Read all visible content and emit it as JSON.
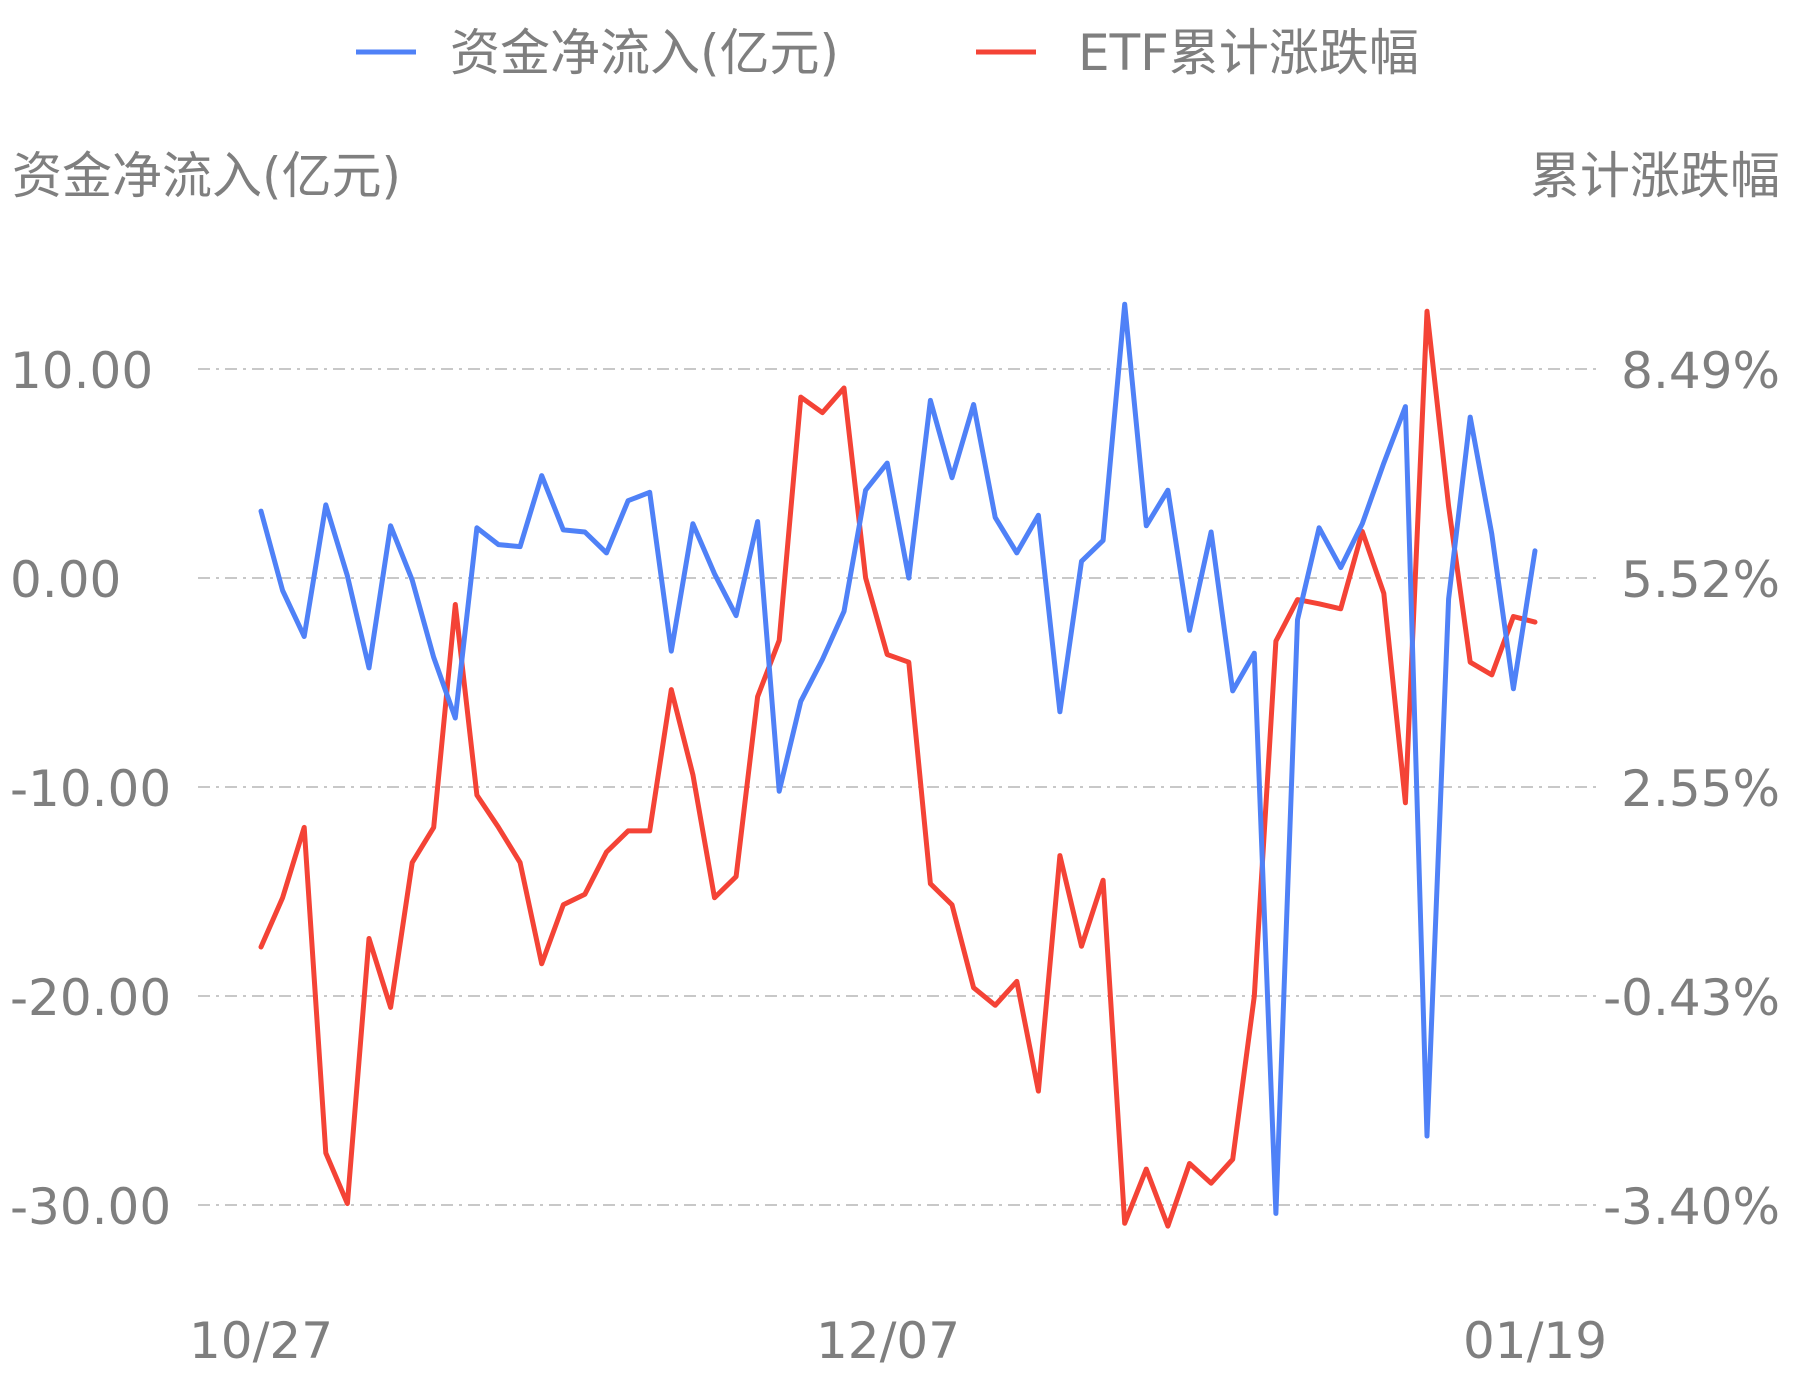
{
  "chart_data": {
    "type": "line",
    "legend_position": "top-center",
    "grid": true,
    "left_axis": {
      "title": "资金净流入(亿元)",
      "ticks": [
        "10.00",
        "0.00",
        "-10.00",
        "-20.00",
        "-30.00"
      ],
      "range": [
        -30,
        10
      ]
    },
    "right_axis": {
      "title": "累计涨跌幅",
      "ticks": [
        "8.49%",
        "5.52%",
        "2.55%",
        "-0.43%",
        "-3.40%"
      ],
      "range": [
        -3.4,
        8.49
      ]
    },
    "x_tick_labels": [
      "10/27",
      "12/07",
      "01/19"
    ],
    "x_tick_index": [
      0,
      29,
      59
    ],
    "series": [
      {
        "name": "资金净流入(亿元)",
        "axis": "left",
        "color": "#4f81f7",
        "values": [
          3.2,
          -0.6,
          -2.8,
          3.5,
          0.1,
          -4.3,
          2.5,
          -0.1,
          -3.8,
          -6.7,
          2.4,
          1.6,
          1.5,
          4.9,
          2.3,
          2.2,
          1.2,
          3.7,
          4.1,
          -3.5,
          2.6,
          0.2,
          -1.8,
          2.7,
          -10.2,
          -5.9,
          -3.9,
          -1.6,
          4.2,
          5.5,
          0.0,
          8.5,
          4.8,
          8.3,
          2.9,
          1.2,
          3.0,
          -6.4,
          0.8,
          1.8,
          13.1,
          2.5,
          4.2,
          -2.5,
          2.2,
          -5.4,
          -3.6,
          -30.4,
          -2.0,
          2.4,
          0.5,
          2.6,
          5.5,
          8.2,
          -26.7,
          -1.0,
          7.7,
          2.1,
          -5.3,
          1.3
        ]
      },
      {
        "name": "ETF累计涨跌幅",
        "axis": "right",
        "color": "#f44336",
        "values": [
          0.27,
          0.97,
          1.97,
          -2.66,
          -3.38,
          0.39,
          -0.59,
          1.47,
          1.97,
          5.14,
          2.43,
          1.97,
          1.47,
          0.03,
          0.87,
          1.02,
          1.62,
          1.92,
          1.92,
          3.93,
          2.72,
          0.97,
          1.27,
          3.83,
          4.63,
          8.09,
          7.87,
          8.22,
          5.52,
          4.43,
          4.32,
          1.17,
          0.87,
          -0.31,
          -0.56,
          -0.22,
          -1.78,
          1.57,
          0.28,
          1.22,
          -3.66,
          -2.89,
          -3.7,
          -2.81,
          -3.09,
          -2.75,
          -0.43,
          4.62,
          5.21,
          5.15,
          5.08,
          6.18,
          5.3,
          2.32,
          9.31,
          6.54,
          4.32,
          4.14,
          4.97,
          4.89
        ]
      }
    ]
  }
}
